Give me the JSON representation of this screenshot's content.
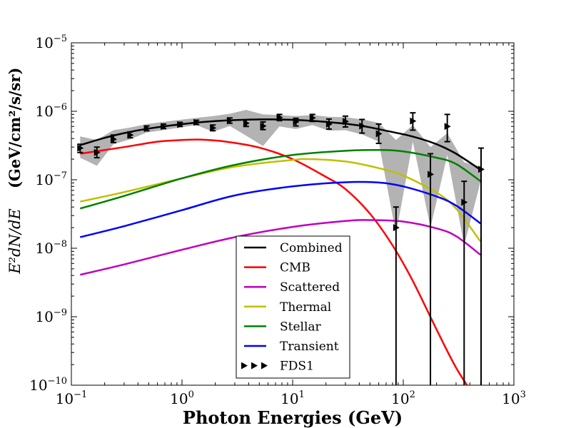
{
  "chart_data": {
    "type": "line",
    "title": "",
    "xlabel": "Photon Energies (GeV)",
    "ylabel": {
      "math": "E²dN/dE",
      "units": "(GeV/cm²/s/sr)"
    },
    "x_scale": "log",
    "y_scale": "log",
    "xlim": [
      0.1,
      1000
    ],
    "ylim": [
      1e-10,
      1e-05
    ],
    "x_ticks": [
      {
        "base": "10",
        "exp": "−1",
        "value": 0.1
      },
      {
        "base": "10",
        "exp": "0",
        "value": 1
      },
      {
        "base": "10",
        "exp": "1",
        "value": 10
      },
      {
        "base": "10",
        "exp": "2",
        "value": 100
      },
      {
        "base": "10",
        "exp": "3",
        "value": 1000
      }
    ],
    "y_ticks": [
      {
        "base": "10",
        "exp": "−10",
        "value": 1e-10
      },
      {
        "base": "10",
        "exp": "−9",
        "value": 1e-09
      },
      {
        "base": "10",
        "exp": "−8",
        "value": 1e-08
      },
      {
        "base": "10",
        "exp": "−7",
        "value": 1e-07
      },
      {
        "base": "10",
        "exp": "−6",
        "value": 1e-06
      },
      {
        "base": "10",
        "exp": "−5",
        "value": 1e-05
      }
    ],
    "legend_position": "lower-center",
    "series": [
      {
        "name": "Combined",
        "color": "#000000",
        "x": [
          0.12,
          0.2,
          0.3,
          0.5,
          1.0,
          2.0,
          5.0,
          10,
          20,
          40,
          70,
          120,
          200,
          300,
          500
        ],
        "y": [
          3.2e-07,
          4.1e-07,
          4.8e-07,
          5.6e-07,
          6.5e-07,
          7.2e-07,
          7.6e-07,
          7.5e-07,
          7e-07,
          6.2e-07,
          5.2e-07,
          4.3e-07,
          3.3e-07,
          2.4e-07,
          1.4e-07
        ]
      },
      {
        "name": "CMB",
        "color": "#ff0000",
        "x": [
          0.12,
          0.3,
          0.6,
          1.0,
          1.5,
          2.5,
          5,
          10,
          20,
          30,
          50,
          80,
          120,
          200,
          300,
          450
        ],
        "y": [
          2.4e-07,
          3e-07,
          3.6e-07,
          3.8e-07,
          3.85e-07,
          3.6e-07,
          2.95e-07,
          2e-07,
          1.1e-07,
          7.3e-08,
          3.2e-08,
          1.1e-08,
          3.5e-09,
          6.5e-10,
          1.8e-10,
          6.5e-11
        ]
      },
      {
        "name": "Scattered",
        "color": "#bf00bf",
        "x": [
          0.12,
          0.3,
          1.0,
          3.0,
          10,
          30,
          50,
          100,
          200,
          300,
          500
        ],
        "y": [
          4.1e-09,
          5.8e-09,
          9.5e-09,
          1.45e-08,
          2.05e-08,
          2.5e-08,
          2.58e-08,
          2.45e-08,
          1.95e-08,
          1.5e-08,
          8e-09
        ]
      },
      {
        "name": "Thermal",
        "color": "#bfbf00",
        "x": [
          0.12,
          0.3,
          1.0,
          3.0,
          10,
          15,
          30,
          60,
          100,
          200,
          300,
          500
        ],
        "y": [
          4.8e-08,
          6.6e-08,
          1.05e-07,
          1.55e-07,
          1.95e-07,
          2e-07,
          1.85e-07,
          1.48e-07,
          1.15e-07,
          6.5e-08,
          3.8e-08,
          1.25e-08
        ]
      },
      {
        "name": "Stellar",
        "color": "#008000",
        "x": [
          0.12,
          0.3,
          1.0,
          3.0,
          10,
          30,
          60,
          100,
          200,
          300,
          500
        ],
        "y": [
          3.8e-08,
          5.8e-08,
          1.05e-07,
          1.65e-07,
          2.3e-07,
          2.65e-07,
          2.72e-07,
          2.6e-07,
          2.1e-07,
          1.7e-07,
          9.5e-08
        ]
      },
      {
        "name": "Transient",
        "color": "#0000ff",
        "x": [
          0.12,
          0.3,
          1.0,
          3.0,
          10,
          30,
          60,
          100,
          200,
          300,
          500
        ],
        "y": [
          1.45e-08,
          2.1e-08,
          3.6e-08,
          5.9e-08,
          8e-08,
          9.2e-08,
          9.1e-08,
          8e-08,
          5.7e-08,
          4.2e-08,
          2.3e-08
        ]
      }
    ],
    "data_points": {
      "name": "FDS1",
      "marker": "triangle-right",
      "points": [
        {
          "x": 0.12,
          "y": 2.9e-07,
          "lo": 2.5e-07,
          "hi": 3.3e-07
        },
        {
          "x": 0.17,
          "y": 2.5e-07,
          "lo": 2.1e-07,
          "hi": 3e-07
        },
        {
          "x": 0.24,
          "y": 3.9e-07,
          "lo": 3.5e-07,
          "hi": 4.5e-07
        },
        {
          "x": 0.34,
          "y": 4.5e-07,
          "lo": 4.1e-07,
          "hi": 5e-07
        },
        {
          "x": 0.48,
          "y": 5.6e-07,
          "lo": 5.2e-07,
          "hi": 6.1e-07
        },
        {
          "x": 0.68,
          "y": 6e-07,
          "lo": 5.6e-07,
          "hi": 6.5e-07
        },
        {
          "x": 0.96,
          "y": 6.4e-07,
          "lo": 6e-07,
          "hi": 6.9e-07
        },
        {
          "x": 1.35,
          "y": 6.9e-07,
          "lo": 6.4e-07,
          "hi": 7.4e-07
        },
        {
          "x": 1.9,
          "y": 5.7e-07,
          "lo": 5.2e-07,
          "hi": 6.3e-07
        },
        {
          "x": 2.7,
          "y": 7.3e-07,
          "lo": 6.7e-07,
          "hi": 8e-07
        },
        {
          "x": 3.8,
          "y": 6.7e-07,
          "lo": 6e-07,
          "hi": 7.5e-07
        },
        {
          "x": 5.4,
          "y": 6.1e-07,
          "lo": 5.4e-07,
          "hi": 7e-07
        },
        {
          "x": 7.6,
          "y": 8.1e-07,
          "lo": 7.3e-07,
          "hi": 9e-07
        },
        {
          "x": 10.7,
          "y": 7e-07,
          "lo": 6.1e-07,
          "hi": 7.9e-07
        },
        {
          "x": 15.1,
          "y": 8e-07,
          "lo": 7.1e-07,
          "hi": 9e-07
        },
        {
          "x": 21.3,
          "y": 6.5e-07,
          "lo": 5.5e-07,
          "hi": 7.7e-07
        },
        {
          "x": 30.0,
          "y": 7.1e-07,
          "lo": 5.9e-07,
          "hi": 8.5e-07
        },
        {
          "x": 42.4,
          "y": 6.1e-07,
          "lo": 4.8e-07,
          "hi": 7.6e-07
        },
        {
          "x": 60.0,
          "y": 4.7e-07,
          "lo": 3.4e-07,
          "hi": 6.5e-07
        },
        {
          "x": 86.0,
          "y": 2e-08,
          "lo": 1e-10,
          "hi": 4e-08
        },
        {
          "x": 122,
          "y": 7.2e-07,
          "lo": 5.3e-07,
          "hi": 9.5e-07
        },
        {
          "x": 176,
          "y": 1.2e-07,
          "lo": 1e-10,
          "hi": 2.4e-07
        },
        {
          "x": 250,
          "y": 6e-07,
          "lo": 3.6e-07,
          "hi": 9e-07
        },
        {
          "x": 355,
          "y": 4.7e-08,
          "lo": 1e-10,
          "hi": 9.5e-08
        },
        {
          "x": 505,
          "y": 1.42e-07,
          "lo": 1e-10,
          "hi": 2.9e-07
        }
      ]
    },
    "band": {
      "color": "#b3b3b3",
      "x": [
        0.12,
        0.17,
        0.24,
        0.34,
        0.48,
        0.68,
        0.96,
        1.35,
        1.9,
        2.7,
        3.8,
        5.4,
        7.6,
        10.7,
        15.1,
        21.3,
        30.0,
        42.4,
        60.0,
        86.0,
        122,
        176,
        250,
        355,
        505
      ],
      "upper": [
        4.3e-07,
        3.8e-07,
        5.3e-07,
        5.8e-07,
        6.5e-07,
        7e-07,
        7.5e-07,
        8e-07,
        8.5e-07,
        9.2e-07,
        1.05e-06,
        9e-07,
        8.8e-07,
        8.5e-07,
        8.8e-07,
        8.3e-07,
        8.2e-07,
        7.6e-07,
        6.8e-07,
        3.8e-07,
        6.3e-07,
        3e-07,
        4.8e-07,
        1.8e-07,
        1.55e-07
      ],
      "lower": [
        2.1e-07,
        1.6e-07,
        3.3e-07,
        3.9e-07,
        4.9e-07,
        5.3e-07,
        5.8e-07,
        6.3e-07,
        5e-07,
        6.1e-07,
        4.4e-07,
        3.1e-07,
        6e-07,
        5.5e-07,
        6.3e-07,
        5.2e-07,
        5.3e-07,
        4.6e-07,
        3.6e-07,
        1.6e-08,
        3.6e-07,
        2e-08,
        2.3e-07,
        1.1e-08,
        1e-07
      ]
    }
  }
}
